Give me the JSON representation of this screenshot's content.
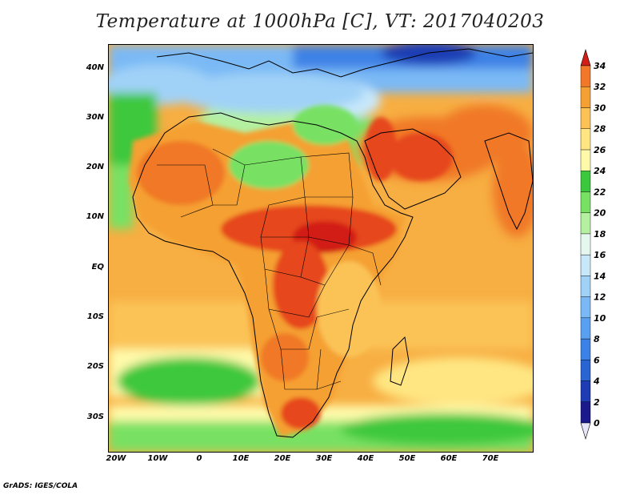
{
  "title": "Temperature at 1000hPa [C], VT: 2017040203",
  "credit": "GrADS: IGES/COLA",
  "map": {
    "projection": "lat-lon",
    "lon_range": [
      -22,
      80
    ],
    "lat_range": [
      -37,
      45
    ],
    "lat_ticks": [
      "40N",
      "30N",
      "20N",
      "10N",
      "EQ",
      "10S",
      "20S",
      "30S"
    ],
    "lon_ticks": [
      "20W",
      "10W",
      "0",
      "10E",
      "20E",
      "30E",
      "40E",
      "50E",
      "60E",
      "70E"
    ]
  },
  "colorbar": {
    "labels": [
      "0",
      "2",
      "4",
      "6",
      "8",
      "10",
      "12",
      "14",
      "16",
      "18",
      "20",
      "22",
      "24",
      "26",
      "28",
      "30",
      "32",
      "34"
    ],
    "colors": [
      "#1a1a8c",
      "#1e3cb4",
      "#2864d2",
      "#3c82e6",
      "#5aa0f0",
      "#7ab9f5",
      "#a0d2f8",
      "#c8e8fa",
      "#e6f7f0",
      "#b4f0a0",
      "#78e164",
      "#3cc83c",
      "#fffaaa",
      "#ffe682",
      "#fbc356",
      "#f5a032",
      "#f07828",
      "#e6461e",
      "#d21e14"
    ],
    "over_color": "#d21e14",
    "under_color": "#e6e6f8"
  }
}
